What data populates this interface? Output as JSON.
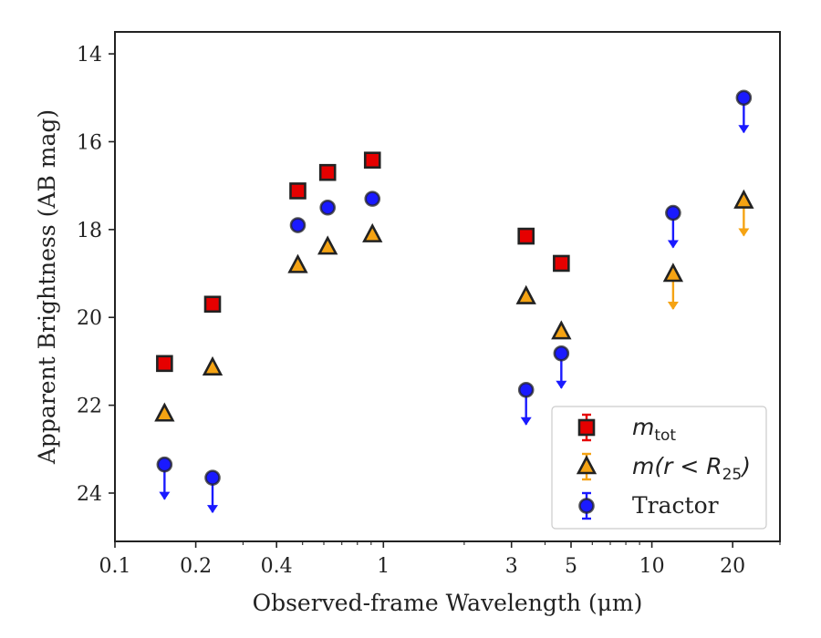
{
  "chart_data": {
    "type": "scatter",
    "title": "",
    "xlabel": "Observed-frame Wavelength (μm)",
    "ylabel": "Apparent Brightness (AB mag)",
    "xscale": "log",
    "xlim": [
      0.1,
      30
    ],
    "ylim": [
      25.1,
      13.5
    ],
    "y_inverted": true,
    "grid": false,
    "legend_placement": "lower-right",
    "xticks": [
      {
        "value": 0.1,
        "label": "0.1"
      },
      {
        "value": 0.2,
        "label": "0.2"
      },
      {
        "value": 0.4,
        "label": "0.4"
      },
      {
        "value": 1,
        "label": "1"
      },
      {
        "value": 3,
        "label": "3"
      },
      {
        "value": 5,
        "label": "5"
      },
      {
        "value": 10,
        "label": "10"
      },
      {
        "value": 20,
        "label": "20"
      }
    ],
    "yticks": [
      {
        "value": 14,
        "label": "14"
      },
      {
        "value": 16,
        "label": "16"
      },
      {
        "value": 18,
        "label": "18"
      },
      {
        "value": 20,
        "label": "20"
      },
      {
        "value": 22,
        "label": "22"
      },
      {
        "value": 24,
        "label": "24"
      }
    ],
    "series": [
      {
        "key": "mtot",
        "legend_label": {
          "prefix": "m",
          "sub": "tot",
          "suffix": ""
        },
        "marker": "square",
        "color": "#e60000",
        "x": [
          0.153,
          0.231,
          0.48,
          0.62,
          0.91,
          3.4,
          4.6
        ],
        "y": [
          21.05,
          19.7,
          17.12,
          16.7,
          16.42,
          18.15,
          18.77
        ],
        "upper_limit": [
          false,
          false,
          false,
          false,
          false,
          false,
          false
        ]
      },
      {
        "key": "mr25",
        "legend_label": {
          "prefix": "m(r < R",
          "sub": "25",
          "suffix": ")"
        },
        "marker": "triangle",
        "color": "#f5a313",
        "x": [
          0.153,
          0.231,
          0.48,
          0.62,
          0.91,
          3.4,
          4.6,
          12.0,
          22.0
        ],
        "y": [
          22.2,
          21.15,
          18.82,
          18.4,
          18.12,
          19.53,
          20.33,
          19.02,
          17.35
        ],
        "upper_limit": [
          false,
          false,
          false,
          false,
          false,
          false,
          false,
          true,
          true
        ]
      },
      {
        "key": "tractor",
        "legend_label": {
          "prefix": "Tractor",
          "sub": "",
          "suffix": ""
        },
        "marker": "circle",
        "color": "#1a1aff",
        "x": [
          0.153,
          0.231,
          0.48,
          0.62,
          0.91,
          3.4,
          4.6,
          12.0,
          22.0
        ],
        "y": [
          23.35,
          23.65,
          17.9,
          17.5,
          17.3,
          21.65,
          20.82,
          17.62,
          15.0
        ],
        "upper_limit": [
          true,
          true,
          false,
          false,
          false,
          true,
          true,
          true,
          true
        ]
      }
    ]
  }
}
